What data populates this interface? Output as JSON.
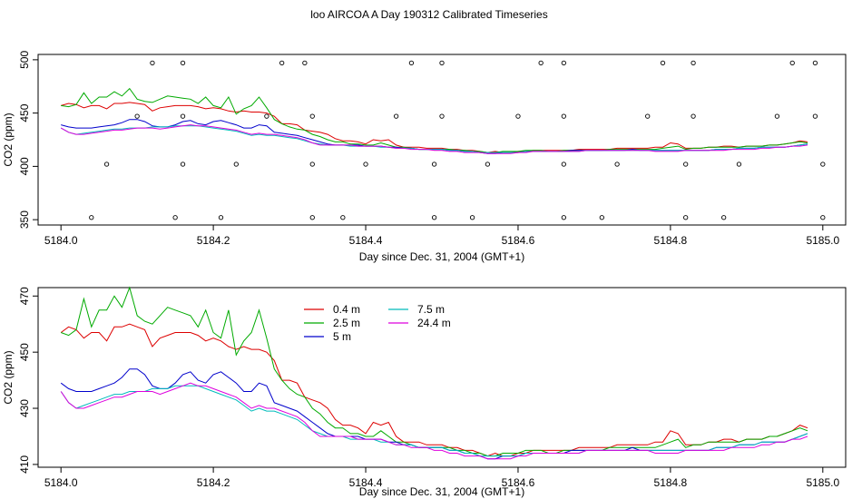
{
  "figure_title": "loo AIRCOA A  Day 190312  Calibrated Timeseries",
  "chart_data": [
    {
      "type": "line",
      "title": "loo AIRCOA A  Day 190312  Calibrated Timeseries",
      "xlabel": "Day since Dec. 31, 2004 (GMT+1)",
      "ylabel": "CO2 (ppm)",
      "xlim": [
        5183.97,
        5185.03
      ],
      "ylim": [
        345,
        505
      ],
      "xticks": [
        5184.0,
        5184.2,
        5184.4,
        5184.6,
        5184.8,
        5185.0
      ],
      "xtick_labels": [
        "5184.0",
        "5184.2",
        "5184.4",
        "5184.6",
        "5184.8",
        "5185.0"
      ],
      "yticks": [
        350,
        400,
        450,
        500
      ],
      "ytick_labels": [
        "350",
        "400",
        "450",
        "500"
      ],
      "grid": false,
      "legend": "none",
      "series_ref": "shared_series",
      "calibration_points": [
        [
          5184.12,
          497
        ],
        [
          5184.16,
          497
        ],
        [
          5184.29,
          497
        ],
        [
          5184.32,
          497
        ],
        [
          5184.46,
          497
        ],
        [
          5184.5,
          497
        ],
        [
          5184.63,
          497
        ],
        [
          5184.66,
          497
        ],
        [
          5184.79,
          497
        ],
        [
          5184.83,
          497
        ],
        [
          5184.96,
          497
        ],
        [
          5184.99,
          497
        ],
        [
          5184.1,
          447
        ],
        [
          5184.16,
          447
        ],
        [
          5184.27,
          447
        ],
        [
          5184.33,
          447
        ],
        [
          5184.44,
          447
        ],
        [
          5184.5,
          447
        ],
        [
          5184.6,
          447
        ],
        [
          5184.66,
          447
        ],
        [
          5184.77,
          447
        ],
        [
          5184.83,
          447
        ],
        [
          5184.94,
          447
        ],
        [
          5184.99,
          447
        ],
        [
          5184.06,
          402
        ],
        [
          5184.16,
          402
        ],
        [
          5184.23,
          402
        ],
        [
          5184.33,
          402
        ],
        [
          5184.4,
          402
        ],
        [
          5184.49,
          402
        ],
        [
          5184.56,
          402
        ],
        [
          5184.66,
          402
        ],
        [
          5184.73,
          402
        ],
        [
          5184.82,
          402
        ],
        [
          5184.89,
          402
        ],
        [
          5185.0,
          402
        ],
        [
          5184.04,
          352
        ],
        [
          5184.15,
          352
        ],
        [
          5184.21,
          352
        ],
        [
          5184.33,
          352
        ],
        [
          5184.37,
          352
        ],
        [
          5184.49,
          352
        ],
        [
          5184.54,
          352
        ],
        [
          5184.66,
          352
        ],
        [
          5184.71,
          352
        ],
        [
          5184.82,
          352
        ],
        [
          5184.87,
          352
        ],
        [
          5185.0,
          352
        ]
      ]
    },
    {
      "type": "line",
      "title": "",
      "xlabel": "Day since Dec. 31, 2004 (GMT+1)",
      "ylabel": "CO2 (ppm)",
      "xlim": [
        5183.97,
        5185.03
      ],
      "ylim": [
        409,
        473
      ],
      "xticks": [
        5184.0,
        5184.2,
        5184.4,
        5184.6,
        5184.8,
        5185.0
      ],
      "xtick_labels": [
        "5184.0",
        "5184.2",
        "5184.4",
        "5184.6",
        "5184.8",
        "5185.0"
      ],
      "yticks": [
        410,
        430,
        450,
        470
      ],
      "ytick_labels": [
        "410",
        "430",
        "450",
        "470"
      ],
      "grid": false,
      "legend": "top-left",
      "legend_layout": [
        [
          "0.4 m",
          "2.5 m",
          "5 m"
        ],
        [
          "7.5 m",
          "24.4 m"
        ]
      ],
      "series_ref": "shared_series"
    }
  ],
  "shared_series": {
    "x": [
      5184.0,
      5184.01,
      5184.02,
      5184.03,
      5184.04,
      5184.05,
      5184.06,
      5184.07,
      5184.08,
      5184.09,
      5184.1,
      5184.11,
      5184.12,
      5184.13,
      5184.14,
      5184.15,
      5184.16,
      5184.17,
      5184.18,
      5184.19,
      5184.2,
      5184.21,
      5184.22,
      5184.23,
      5184.24,
      5184.25,
      5184.26,
      5184.27,
      5184.28,
      5184.29,
      5184.3,
      5184.31,
      5184.32,
      5184.33,
      5184.34,
      5184.35,
      5184.36,
      5184.37,
      5184.38,
      5184.39,
      5184.4,
      5184.41,
      5184.42,
      5184.43,
      5184.44,
      5184.45,
      5184.46,
      5184.47,
      5184.48,
      5184.49,
      5184.5,
      5184.51,
      5184.52,
      5184.53,
      5184.54,
      5184.55,
      5184.56,
      5184.57,
      5184.58,
      5184.59,
      5184.6,
      5184.61,
      5184.62,
      5184.63,
      5184.64,
      5184.65,
      5184.66,
      5184.67,
      5184.68,
      5184.69,
      5184.7,
      5184.71,
      5184.72,
      5184.73,
      5184.74,
      5184.75,
      5184.76,
      5184.77,
      5184.78,
      5184.79,
      5184.8,
      5184.81,
      5184.82,
      5184.83,
      5184.84,
      5184.85,
      5184.86,
      5184.87,
      5184.88,
      5184.89,
      5184.9,
      5184.91,
      5184.92,
      5184.93,
      5184.94,
      5184.95,
      5184.96,
      5184.97,
      5184.98
    ],
    "series": [
      {
        "name": "0.4 m",
        "color": "#dd0000",
        "values": [
          457,
          459,
          458,
          455,
          457,
          457,
          454,
          459,
          459,
          460,
          459,
          458,
          452,
          455,
          456,
          457,
          457,
          457,
          456,
          454,
          455,
          454,
          452,
          451,
          452,
          451,
          451,
          450,
          447,
          440,
          440,
          439,
          434,
          433,
          432,
          430,
          426,
          424,
          424,
          423,
          421,
          425,
          424,
          425,
          420,
          418,
          418,
          418,
          417,
          417,
          417,
          416,
          416,
          415,
          415,
          414,
          413,
          414,
          413,
          413,
          414,
          414,
          415,
          415,
          415,
          415,
          415,
          415,
          416,
          416,
          416,
          416,
          416,
          417,
          417,
          417,
          417,
          417,
          418,
          418,
          422,
          421,
          417,
          417,
          417,
          418,
          418,
          419,
          419,
          418,
          419,
          419,
          419,
          420,
          420,
          421,
          422,
          424,
          423
        ]
      },
      {
        "name": "2.5 m",
        "color": "#00aa00",
        "values": [
          457,
          456,
          458,
          469,
          459,
          465,
          465,
          470,
          466,
          473,
          463,
          461,
          460,
          463,
          466,
          465,
          464,
          463,
          459,
          465,
          457,
          455,
          465,
          449,
          454,
          457,
          465,
          455,
          444,
          440,
          437,
          435,
          434,
          430,
          428,
          425,
          423,
          423,
          421,
          421,
          420,
          420,
          422,
          420,
          418,
          418,
          417,
          416,
          416,
          416,
          416,
          416,
          415,
          415,
          414,
          414,
          413,
          413,
          414,
          414,
          414,
          415,
          415,
          415,
          414,
          414,
          415,
          415,
          415,
          415,
          415,
          415,
          416,
          416,
          416,
          416,
          416,
          416,
          416,
          417,
          418,
          419,
          416,
          417,
          417,
          418,
          418,
          418,
          418,
          418,
          419,
          419,
          419,
          420,
          420,
          421,
          422,
          423,
          422
        ]
      },
      {
        "name": "5 m",
        "color": "#0000cc",
        "values": [
          439,
          437,
          436,
          436,
          436,
          437,
          438,
          439,
          441,
          444,
          444,
          442,
          438,
          437,
          437,
          439,
          442,
          443,
          440,
          439,
          442,
          443,
          441,
          439,
          436,
          436,
          439,
          438,
          432,
          431,
          430,
          429,
          427,
          425,
          423,
          421,
          420,
          420,
          420,
          420,
          419,
          419,
          419,
          418,
          418,
          417,
          417,
          416,
          416,
          416,
          416,
          415,
          415,
          414,
          414,
          413,
          412,
          412,
          413,
          413,
          413,
          414,
          414,
          414,
          414,
          414,
          414,
          415,
          415,
          415,
          415,
          415,
          415,
          415,
          415,
          416,
          415,
          415,
          415,
          415,
          415,
          415,
          415,
          415,
          415,
          415,
          416,
          416,
          416,
          417,
          417,
          417,
          418,
          418,
          418,
          418,
          419,
          420,
          421
        ]
      },
      {
        "name": "7.5 m",
        "color": "#00bbbb",
        "values": [
          436,
          432,
          430,
          431,
          432,
          433,
          434,
          435,
          435,
          436,
          436,
          436,
          437,
          437,
          437,
          438,
          438,
          438,
          438,
          437,
          436,
          435,
          434,
          433,
          431,
          429,
          430,
          429,
          429,
          428,
          427,
          426,
          424,
          422,
          421,
          420,
          420,
          420,
          419,
          419,
          419,
          419,
          418,
          418,
          417,
          417,
          417,
          416,
          416,
          416,
          416,
          415,
          415,
          414,
          414,
          413,
          413,
          413,
          413,
          413,
          413,
          414,
          414,
          414,
          414,
          414,
          414,
          414,
          414,
          415,
          415,
          415,
          415,
          415,
          415,
          415,
          415,
          415,
          415,
          415,
          415,
          415,
          415,
          415,
          415,
          415,
          416,
          416,
          416,
          417,
          417,
          417,
          418,
          418,
          418,
          418,
          419,
          420,
          421
        ]
      },
      {
        "name": "24.4 m",
        "color": "#dd00dd",
        "values": [
          436,
          432,
          430,
          430,
          431,
          432,
          433,
          434,
          434,
          435,
          436,
          436,
          436,
          435,
          436,
          437,
          438,
          439,
          438,
          438,
          437,
          436,
          435,
          434,
          432,
          430,
          431,
          430,
          430,
          429,
          428,
          427,
          425,
          422,
          420,
          420,
          420,
          420,
          420,
          419,
          419,
          419,
          419,
          418,
          417,
          417,
          416,
          416,
          416,
          415,
          415,
          414,
          414,
          413,
          413,
          413,
          412,
          412,
          412,
          412,
          413,
          413,
          414,
          414,
          414,
          414,
          414,
          414,
          414,
          415,
          415,
          415,
          415,
          415,
          415,
          415,
          415,
          415,
          414,
          414,
          414,
          414,
          415,
          415,
          415,
          415,
          415,
          415,
          416,
          416,
          416,
          416,
          417,
          417,
          418,
          418,
          419,
          419,
          420
        ]
      }
    ]
  }
}
